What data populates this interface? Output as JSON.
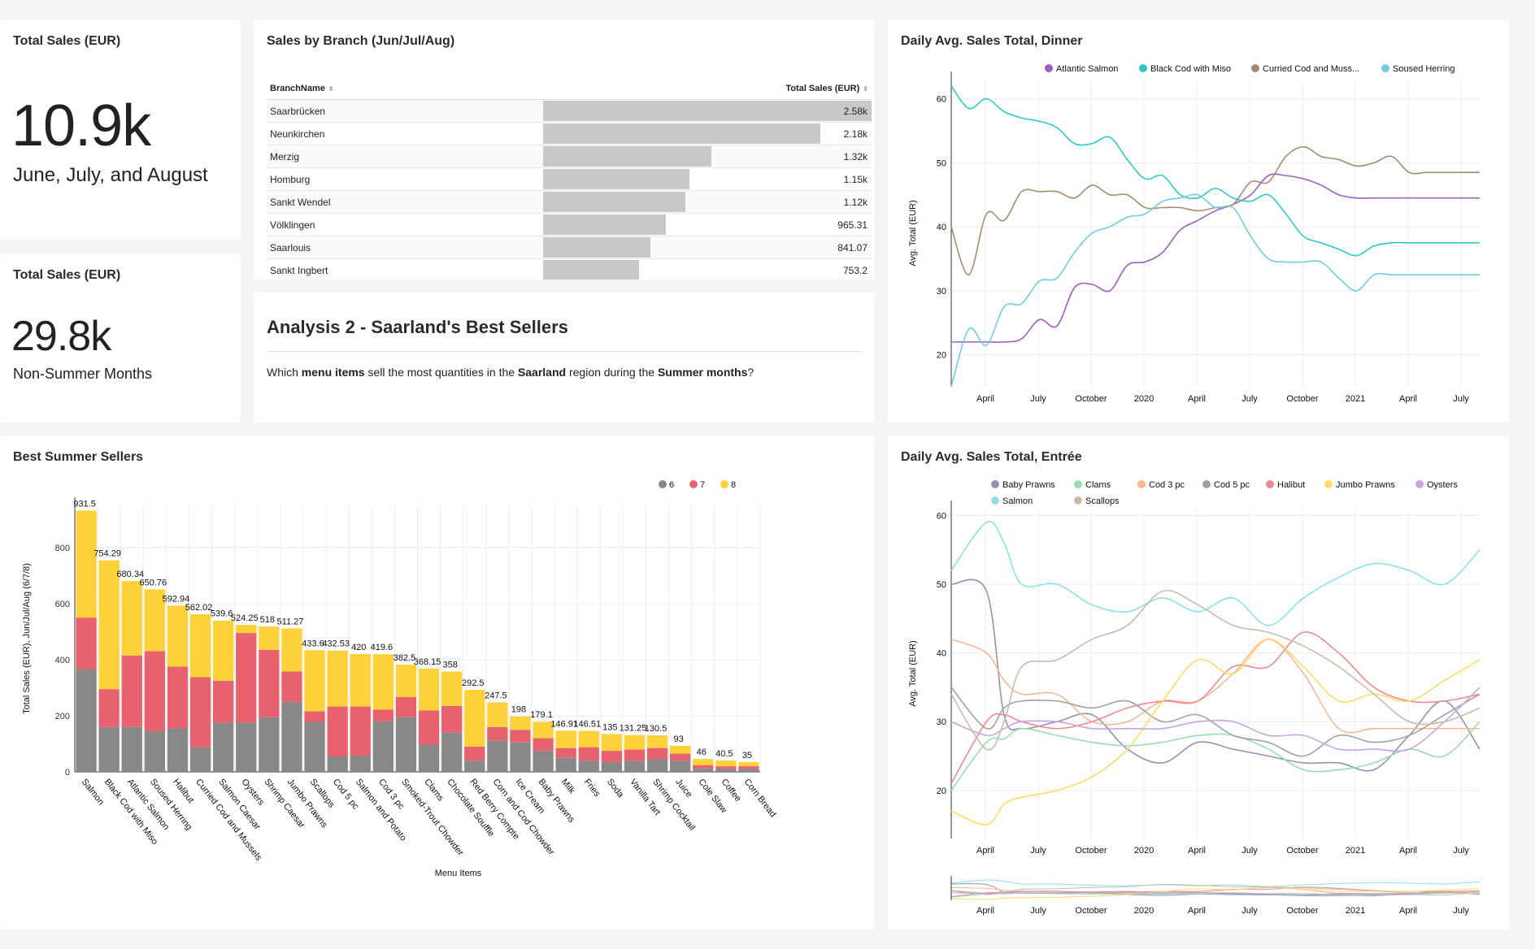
{
  "kpi1": {
    "title": "Total Sales (EUR)",
    "value": "10.9k",
    "subtitle": "June, July, and August"
  },
  "kpi2": {
    "title": "Total Sales (EUR)",
    "value": "29.8k",
    "subtitle": "Non-Summer Months"
  },
  "branch_table": {
    "title": "Sales by Branch (Jun/Jul/Aug)",
    "columns": [
      "BranchName",
      "Total Sales (EUR)"
    ],
    "rows": [
      {
        "name": "Saarbrücken",
        "value": "2.58k",
        "num": 2580
      },
      {
        "name": "Neunkirchen",
        "value": "2.18k",
        "num": 2180
      },
      {
        "name": "Merzig",
        "value": "1.32k",
        "num": 1320
      },
      {
        "name": "Homburg",
        "value": "1.15k",
        "num": 1150
      },
      {
        "name": "Sankt Wendel",
        "value": "1.12k",
        "num": 1120
      },
      {
        "name": "Völklingen",
        "value": "965.31",
        "num": 965.31
      },
      {
        "name": "Saarlouis",
        "value": "841.07",
        "num": 841.07
      },
      {
        "name": "Sankt Ingbert",
        "value": "753.2",
        "num": 753.2
      }
    ]
  },
  "analysis": {
    "title": "Analysis 2 - Saarland's Best Sellers",
    "text_1": "Which ",
    "bold_1": "menu items",
    "text_2": " sell the most quantities in the ",
    "bold_2": "Saarland",
    "text_3": " region during the ",
    "bold_3": "Summer months",
    "text_4": "?"
  },
  "colors": {
    "month6": "#888888",
    "month7": "#e8616f",
    "month8": "#fdd13a"
  },
  "chart_data": [
    {
      "type": "bar",
      "stacked": true,
      "title": "Best Summer Sellers",
      "xlabel": "Menu Items",
      "ylabel": "Total Sales (EUR), Jun/Jul/Aug (6/7/8)",
      "ylim": [
        0,
        950
      ],
      "yticks": [
        0,
        200,
        400,
        600,
        800
      ],
      "legend_position": "top-right",
      "categories": [
        "Salmon",
        "Black Cod with Miso",
        "Atlantic Salmon",
        "Soused Herring",
        "Halibut",
        "Curried Cod and Mussels",
        "Salmon Caesar",
        "Oysters",
        "Shrimp Caesar",
        "Jumbo Prawns",
        "Scallops",
        "Cod 5 pc",
        "Salmon and Potato",
        "Cod 3 pc",
        "Smoked-Trout Chowder",
        "Clams",
        "Chocolate Souffle",
        "Red Berry Compte",
        "Corn and Cod Chowder",
        "Ice Cream",
        "Baby Prawns",
        "Milk",
        "Fries",
        "Soda",
        "Vanilla Tart",
        "Shrimp Cocktail",
        "Juice",
        "Cole Slaw",
        "Coffee",
        "Corn Bread"
      ],
      "totals_labels": [
        "931.5",
        "754.29",
        "680.34",
        "650.76",
        "592.94",
        "562.02",
        "539.6",
        "524.25",
        "518",
        "511.27",
        "433.6",
        "432.53",
        "420",
        "419.6",
        "382.5",
        "368.15",
        "358",
        "292.5",
        "247.5",
        "198",
        "179.1",
        "146.91",
        "146.51",
        "135",
        "131.25",
        "130.5",
        "93",
        "46",
        "40.5",
        "35"
      ],
      "series": [
        {
          "name": "6",
          "values": [
            365,
            160,
            160,
            145,
            155,
            88,
            175,
            175,
            195,
            250,
            178,
            55,
            58,
            180,
            195,
            97,
            140,
            40,
            112,
            105,
            75,
            50,
            40,
            35,
            40,
            45,
            40,
            12,
            10,
            10
          ]
        },
        {
          "name": "7",
          "values": [
            185,
            135,
            255,
            285,
            220,
            250,
            150,
            320,
            240,
            108,
            38,
            178,
            175,
            42,
            72,
            122,
            95,
            50,
            48,
            45,
            45,
            35,
            48,
            40,
            40,
            40,
            25,
            12,
            10,
            10
          ]
        },
        {
          "name": "8",
          "values": [
            381.5,
            459.29,
            265.34,
            220.76,
            217.94,
            224.02,
            214.6,
            29.25,
            83,
            153.27,
            217.6,
            199.53,
            187,
            197.6,
            115.5,
            149.15,
            123,
            202.5,
            87.5,
            48,
            59.1,
            61.91,
            58.51,
            60,
            51.25,
            45.5,
            28,
            22,
            20.5,
            15
          ]
        }
      ]
    },
    {
      "type": "line",
      "title": "Daily Avg. Sales Total, Dinner",
      "ylabel": "Avg. Total (EUR)",
      "ylim": [
        15,
        63
      ],
      "yticks": [
        20,
        30,
        40,
        50,
        60
      ],
      "x_ticks": [
        "April",
        "July",
        "October",
        "2020",
        "April",
        "July",
        "October",
        "2021",
        "April",
        "July"
      ],
      "x_range": [
        0,
        30
      ],
      "legend_position": "top",
      "series": [
        {
          "name": "Atlantic Salmon",
          "color": "#a05fc0",
          "x": [
            0,
            2,
            3,
            4,
            5,
            6,
            7,
            8,
            9,
            10,
            11,
            12,
            13,
            14,
            15,
            16,
            17,
            18,
            19,
            20,
            21,
            22,
            23,
            24,
            25,
            26,
            27,
            28,
            29,
            30
          ],
          "y": [
            22,
            22,
            22,
            22.5,
            25.5,
            24.5,
            30.5,
            31,
            30,
            34,
            34.5,
            36,
            39.5,
            41,
            42.5,
            43.5,
            45,
            48,
            48,
            47.5,
            46.5,
            45,
            44.5,
            44.5,
            44.5,
            44.5,
            44.5,
            44.5,
            44.5,
            44.5
          ]
        },
        {
          "name": "Black Cod with Miso",
          "color": "#2ec8c8",
          "x": [
            0,
            1,
            2,
            3,
            4,
            5,
            6,
            7,
            8,
            9,
            10,
            11,
            12,
            13,
            14,
            15,
            16,
            17,
            18,
            19,
            20,
            21,
            22,
            23,
            24,
            25,
            26,
            27,
            28,
            29,
            30
          ],
          "y": [
            62,
            58.5,
            60,
            58,
            57,
            56.5,
            55.5,
            53,
            53,
            54,
            50.5,
            47.5,
            48,
            45,
            44.5,
            46,
            44.5,
            44,
            45,
            42,
            38.5,
            37.5,
            36.5,
            35.5,
            37,
            37.5,
            37.5,
            37.5,
            37.5,
            37.5,
            37.5
          ]
        },
        {
          "name": "Curried Cod and Muss...",
          "color": "#a68b70",
          "x": [
            0,
            1,
            2,
            3,
            4,
            5,
            6,
            7,
            8,
            9,
            10,
            11,
            12,
            13,
            14,
            15,
            16,
            17,
            18,
            19,
            20,
            21,
            22,
            23,
            24,
            25,
            26,
            27,
            28,
            29,
            30
          ],
          "y": [
            40,
            32.5,
            42,
            41,
            45.5,
            45.5,
            45.5,
            44.5,
            46.5,
            45,
            45,
            43,
            43,
            43,
            42.5,
            43,
            43.5,
            47,
            47,
            51,
            52.5,
            51,
            50.5,
            49.5,
            50,
            51,
            48.5,
            48.5,
            48.5,
            48.5,
            48.5
          ]
        },
        {
          "name": "Soused Herring",
          "color": "#72cde0",
          "x": [
            0,
            1,
            2,
            3,
            4,
            5,
            6,
            7,
            8,
            9,
            10,
            11,
            12,
            13,
            14,
            15,
            16,
            17,
            18,
            19,
            20,
            21,
            22,
            23,
            24,
            25,
            26,
            27,
            28,
            29,
            30
          ],
          "y": [
            15,
            24,
            21.5,
            27.5,
            28,
            31.5,
            32,
            36,
            39,
            40,
            41.5,
            42,
            44,
            44.5,
            45,
            43,
            43,
            38.5,
            35,
            34.5,
            34.5,
            34.5,
            32,
            30,
            32.5,
            32.5,
            32.5,
            32.5,
            32.5,
            32.5,
            32.5
          ]
        }
      ]
    },
    {
      "type": "line",
      "title": "Daily Avg. Sales Total, Entrée",
      "ylabel": "Avg. Total (EUR)",
      "ylim": [
        13,
        61
      ],
      "yticks": [
        20,
        30,
        40,
        50,
        60
      ],
      "x_ticks": [
        "April",
        "July",
        "October",
        "2020",
        "April",
        "July",
        "October",
        "2021",
        "April",
        "July"
      ],
      "x_range": [
        0,
        30
      ],
      "legend_position": "top",
      "series": [
        {
          "name": "Baby Prawns",
          "color": "#8f93b8",
          "x": [
            0,
            2,
            3,
            4,
            6,
            8,
            10,
            12,
            14,
            16,
            18,
            20,
            22,
            24,
            26,
            28,
            30
          ],
          "y": [
            50,
            49,
            31,
            29,
            30,
            31,
            26,
            24,
            27,
            26,
            25,
            24,
            24,
            23,
            28,
            33,
            26
          ]
        },
        {
          "name": "Clams",
          "color": "#99ddb2",
          "x": [
            0,
            2,
            3,
            4,
            6,
            8,
            10,
            12,
            14,
            16,
            18,
            20,
            22,
            24,
            26,
            28,
            30
          ],
          "y": [
            20,
            27,
            27.5,
            29,
            28,
            27,
            26.5,
            27,
            28,
            28,
            26,
            23,
            23,
            24,
            26,
            25,
            30
          ]
        },
        {
          "name": "Cod 3 pc",
          "color": "#f6b994",
          "x": [
            0,
            2,
            3,
            4,
            6,
            8,
            10,
            12,
            14,
            16,
            18,
            20,
            22,
            24,
            26,
            28,
            30
          ],
          "y": [
            42,
            40,
            36,
            34,
            34,
            30,
            30,
            33,
            33,
            37,
            42,
            37,
            29,
            29,
            29,
            29,
            29
          ]
        },
        {
          "name": "Cod 5 pc",
          "color": "#a2a2a2",
          "x": [
            0,
            2,
            3,
            4,
            6,
            8,
            10,
            12,
            14,
            16,
            18,
            20,
            22,
            24,
            26,
            28,
            30
          ],
          "y": [
            35,
            29,
            32,
            33,
            33,
            32,
            33,
            30,
            31,
            28,
            27,
            25,
            28,
            27,
            28,
            31,
            34
          ]
        },
        {
          "name": "Halibut",
          "color": "#ee8a95",
          "x": [
            0,
            2,
            3,
            4,
            6,
            8,
            10,
            12,
            14,
            16,
            18,
            20,
            22,
            24,
            26,
            28,
            30
          ],
          "y": [
            21,
            30,
            31,
            30,
            29,
            30,
            32,
            33,
            33,
            38,
            38,
            43,
            40,
            35,
            33,
            33,
            34
          ]
        },
        {
          "name": "Jumbo Prawns",
          "color": "#fcdc63",
          "x": [
            0,
            2,
            3,
            4,
            6,
            8,
            10,
            12,
            14,
            16,
            18,
            20,
            22,
            24,
            26,
            28,
            30
          ],
          "y": [
            17,
            15,
            18,
            19,
            20,
            22,
            26,
            33,
            39,
            37,
            42,
            38,
            33,
            34,
            33,
            36,
            39
          ]
        },
        {
          "name": "Oysters",
          "color": "#c9a4de",
          "x": [
            0,
            2,
            3,
            4,
            6,
            8,
            10,
            12,
            14,
            16,
            18,
            20,
            22,
            24,
            26,
            28,
            30
          ],
          "y": [
            30,
            28,
            29,
            30,
            30,
            29,
            29,
            29,
            30,
            30,
            28,
            28,
            26,
            26,
            26,
            30,
            35
          ]
        },
        {
          "name": "Salmon",
          "color": "#8ee0e8",
          "x": [
            0,
            2,
            3,
            4,
            6,
            8,
            10,
            12,
            14,
            16,
            18,
            20,
            22,
            24,
            26,
            28,
            30
          ],
          "y": [
            52,
            59,
            56,
            50,
            50,
            47,
            46,
            48,
            46,
            48,
            44,
            48,
            51,
            53,
            52,
            50,
            55
          ]
        },
        {
          "name": "Scallops",
          "color": "#c7bba9",
          "x": [
            0,
            2,
            3,
            4,
            6,
            8,
            10,
            12,
            14,
            16,
            18,
            20,
            22,
            24,
            26,
            28,
            30
          ],
          "y": [
            34,
            26,
            30,
            38,
            39,
            42,
            44,
            49,
            47,
            44,
            43,
            41,
            38,
            34,
            30,
            30,
            32
          ]
        }
      ]
    }
  ]
}
